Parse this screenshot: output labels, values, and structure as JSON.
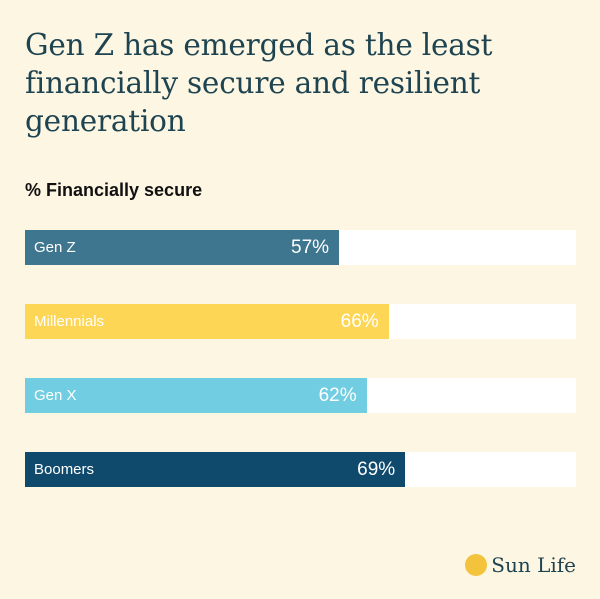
{
  "headline": "Gen Z has emerged as the least financially secure and resilient generation",
  "chart_data": {
    "type": "bar",
    "orientation": "horizontal",
    "title": "% Financially secure",
    "categories": [
      "Gen Z",
      "Millennials",
      "Gen X",
      "Boomers"
    ],
    "values": [
      57,
      66,
      62,
      69
    ],
    "value_labels": [
      "57%",
      "66%",
      "62%",
      "69%"
    ],
    "xlim": [
      0,
      100
    ],
    "colors": [
      "#3e768f",
      "#fdd656",
      "#71cde1",
      "#0f4a6d"
    ],
    "track_color": "#ffffff",
    "grid": false,
    "legend": "none"
  },
  "brand": {
    "logo_text": "Sun Life",
    "logo_color": "#f3c33b"
  },
  "colors": {
    "background": "#fdf6e2",
    "headline": "#1f4451"
  }
}
